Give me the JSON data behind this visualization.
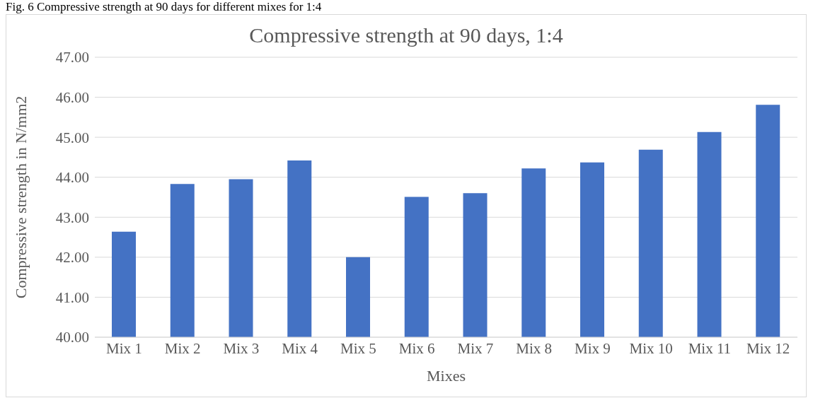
{
  "chart_data": {
    "type": "bar",
    "title": "Compressive strength at 90 days, 1:4",
    "xlabel": "Mixes",
    "ylabel": "Compressive strength in N/mm2",
    "annotations": [
      "Fig. 6 Compressive strength at 90 days for different mixes for 1:4"
    ],
    "categories": [
      "Mix 1",
      "Mix 2",
      "Mix 3",
      "Mix 4",
      "Mix 5",
      "Mix 6",
      "Mix 7",
      "Mix 8",
      "Mix 9",
      "Mix 10",
      "Mix 11",
      "Mix 12"
    ],
    "values": [
      42.64,
      43.83,
      43.95,
      44.42,
      42.0,
      43.51,
      43.6,
      44.22,
      44.37,
      44.69,
      45.13,
      45.81
    ],
    "color": "#4472c4",
    "ylim": [
      40,
      47
    ],
    "yticks": [
      {
        "value": 40,
        "label": "40.00"
      },
      {
        "value": 41,
        "label": "41.00"
      },
      {
        "value": 42,
        "label": "42.00"
      },
      {
        "value": 43,
        "label": "43.00"
      },
      {
        "value": 44,
        "label": "44.00"
      },
      {
        "value": 45,
        "label": "45.00"
      },
      {
        "value": 46,
        "label": "46.00"
      },
      {
        "value": 47,
        "label": "47.00"
      }
    ],
    "grid": "y",
    "legend": false
  }
}
